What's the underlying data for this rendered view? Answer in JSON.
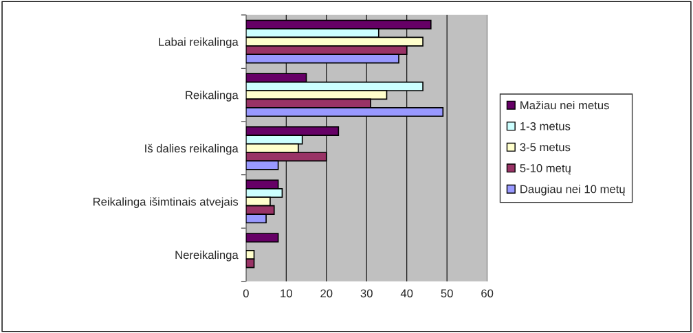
{
  "chart_data": {
    "type": "bar",
    "orientation": "horizontal",
    "categories": [
      "Labai reikalinga",
      "Reikalinga",
      "Iš dalies reikalinga",
      "Reikalinga išimtinais atvejais",
      "Nereikalinga"
    ],
    "series": [
      {
        "name": "Mažiau nei metus",
        "color": "#660066",
        "values": [
          46,
          15,
          23,
          8,
          8
        ]
      },
      {
        "name": "1-3 metus",
        "color": "#ccffff",
        "values": [
          33,
          44,
          14,
          9,
          null
        ]
      },
      {
        "name": "3-5 metus",
        "color": "#ffffcc",
        "values": [
          44,
          35,
          13,
          6,
          2
        ]
      },
      {
        "name": "5-10 metų",
        "color": "#993366",
        "values": [
          40,
          31,
          20,
          7,
          2
        ]
      },
      {
        "name": "Daugiau nei 10 metų",
        "color": "#9999ff",
        "values": [
          38,
          49,
          8,
          5,
          null
        ]
      }
    ],
    "xlim": [
      0,
      60
    ],
    "xticks": [
      0,
      10,
      20,
      30,
      40,
      50,
      60
    ],
    "grid": "x",
    "legend": "right"
  }
}
